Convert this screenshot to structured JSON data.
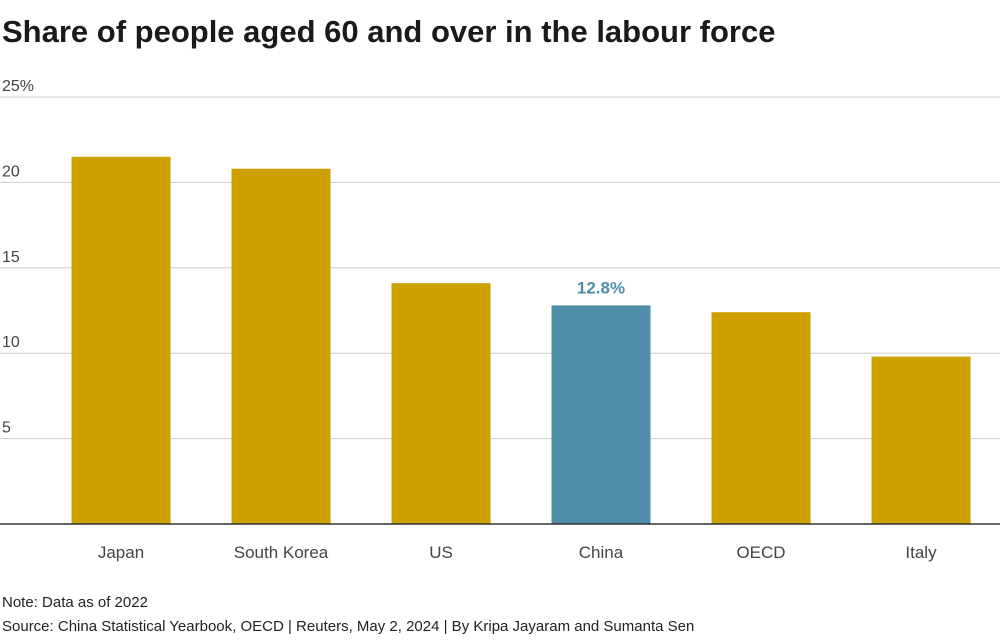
{
  "title": "Share of people aged 60 and over in the labour force",
  "note": "Note: Data as of 2022",
  "source": "Source: China Statistical Yearbook, OECD | Reuters, May 2, 2024 | By Kripa Jayaram and Sumanta Sen",
  "chart_data": {
    "type": "bar",
    "title": "Share of people aged 60 and over in the labour force",
    "categories": [
      "Japan",
      "South Korea",
      "US",
      "China",
      "OECD",
      "Italy"
    ],
    "values": [
      21.5,
      20.8,
      14.1,
      12.8,
      12.4,
      9.8
    ],
    "highlight": {
      "category": "China",
      "label": "12.8%"
    },
    "xlabel": "",
    "ylabel": "",
    "ylim": [
      0,
      25
    ],
    "y_ticks": [
      {
        "value": 25,
        "label": "25%"
      },
      {
        "value": 20,
        "label": "20"
      },
      {
        "value": 15,
        "label": "15"
      },
      {
        "value": 10,
        "label": "10"
      },
      {
        "value": 5,
        "label": "5"
      }
    ],
    "grid": true,
    "legend": "none"
  },
  "colors": {
    "bar": "#cda000",
    "highlight_bar": "#4f8ea8",
    "highlight_label": "#4f8ea8",
    "grid": "#cccccc",
    "axis": "#333333",
    "text": "#444444"
  }
}
